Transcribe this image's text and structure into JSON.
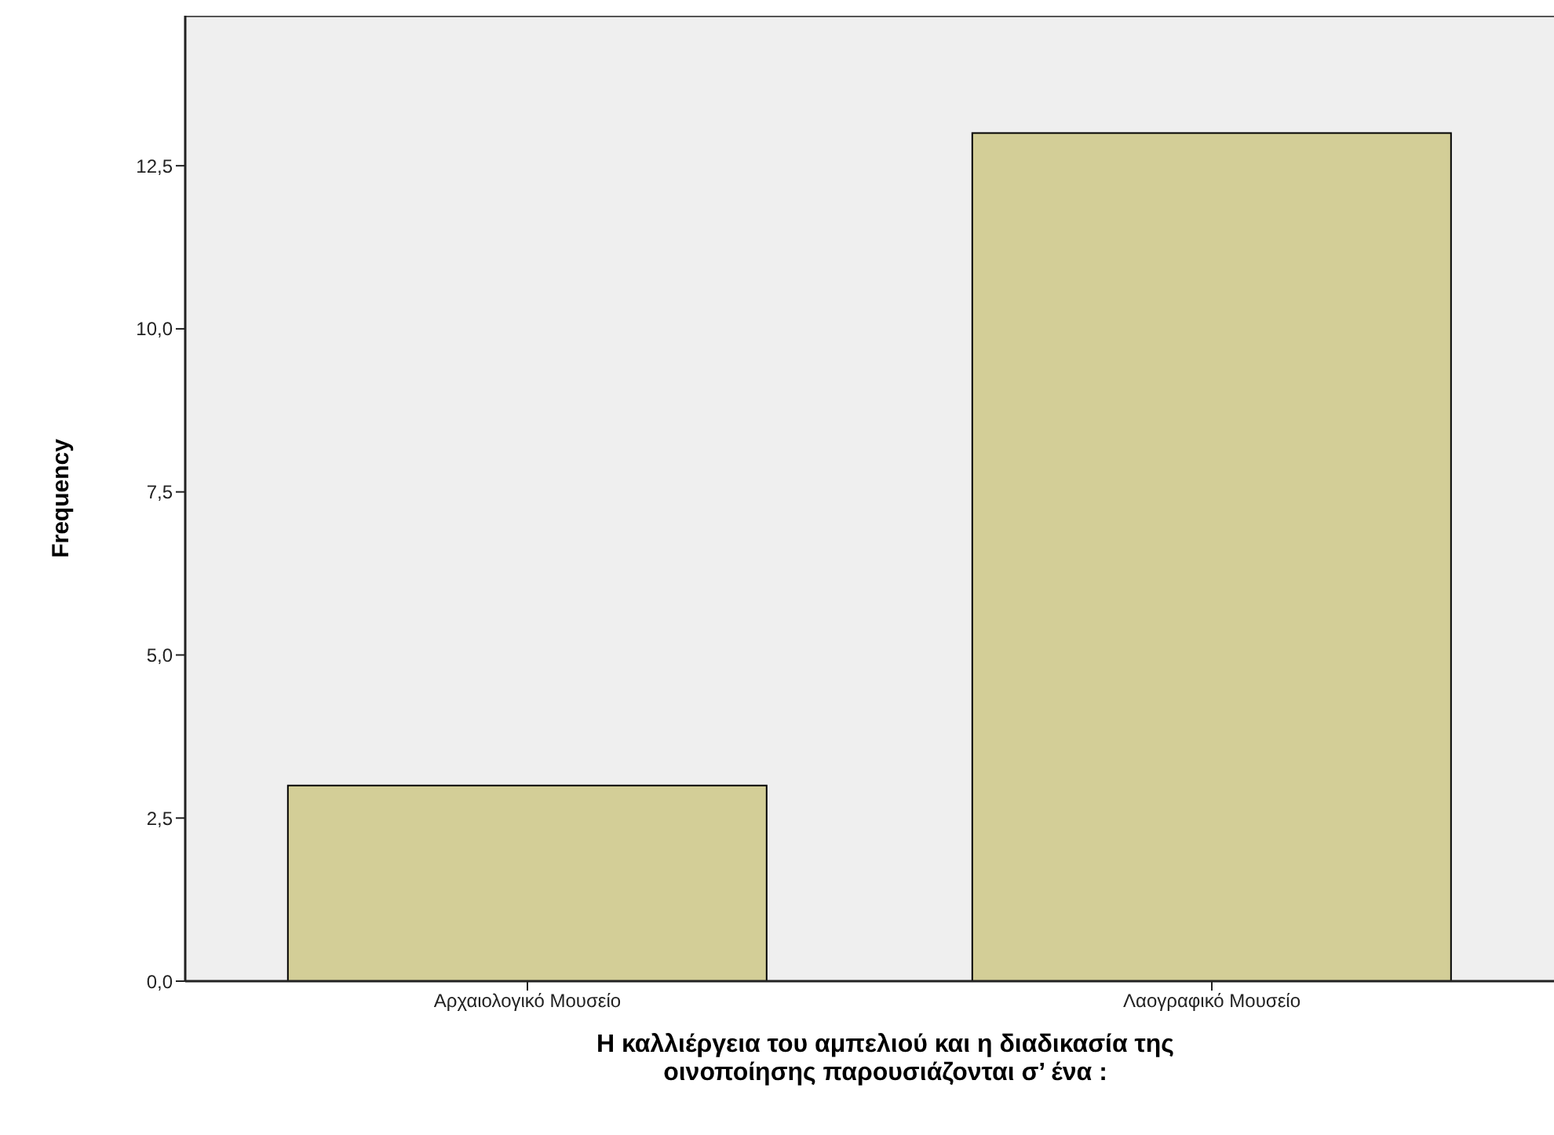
{
  "chart_data": {
    "type": "bar",
    "xlabel": "Η καλλιέργεια του αμπελιού και η διαδικασία της οινοποίησης παρουσιάζονται σ’ ένα :",
    "ylabel": "Frequency",
    "categories": [
      "Αρχαιολογικό Μουσείο",
      "Λαογραφικό Μουσείο"
    ],
    "values": [
      3,
      13
    ],
    "color": "#d3ce97",
    "ylim": [
      0,
      14.8
    ],
    "yticks": [
      {
        "value": 0,
        "label": "0,0"
      },
      {
        "value": 2.5,
        "label": "2,5"
      },
      {
        "value": 5,
        "label": "5,0"
      },
      {
        "value": 7.5,
        "label": "7,5"
      },
      {
        "value": 10,
        "label": "10,0"
      },
      {
        "value": 12.5,
        "label": "12,5"
      }
    ],
    "grid": false,
    "legend": false
  }
}
